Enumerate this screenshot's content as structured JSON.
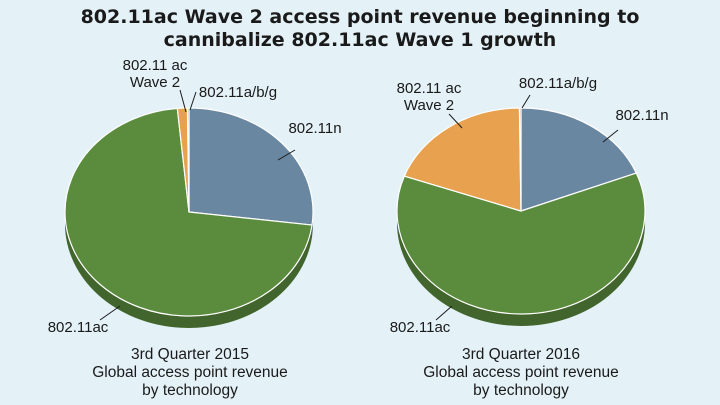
{
  "chart_data": [
    {
      "type": "pie",
      "title": "802.11ac Wave 2 access point revenue beginning to cannibalize 802.11ac Wave 1 growth",
      "caption": [
        "3rd Quarter 2015",
        "Global access point revenue",
        "by technology"
      ],
      "slices": [
        {
          "label": "802.11n",
          "value": 27,
          "color": "#6a87a1"
        },
        {
          "label": "802.11ac",
          "value": 71.5,
          "color": "#5b8c3e"
        },
        {
          "label": "802.11 ac Wave 2",
          "value": 1.3,
          "color": "#e8a14f"
        },
        {
          "label": "802.11a/b/g",
          "value": 0.2,
          "color": "#a4878f"
        }
      ]
    },
    {
      "type": "pie",
      "title": "802.11ac Wave 2 access point revenue beginning to cannibalize 802.11ac Wave 1 growth",
      "caption": [
        "3rd Quarter 2016",
        "Global access point revenue",
        "by technology"
      ],
      "slices": [
        {
          "label": "802.11n",
          "value": 19,
          "color": "#6a87a1"
        },
        {
          "label": "802.11ac",
          "value": 61.5,
          "color": "#5b8c3e"
        },
        {
          "label": "802.11 ac Wave 2",
          "value": 19.3,
          "color": "#e8a14f"
        },
        {
          "label": "802.11a/b/g",
          "value": 0.2,
          "color": "#a4878f"
        }
      ]
    }
  ],
  "title_lines": [
    "802.11ac Wave 2 access point revenue beginning to",
    "cannibalize 802.11ac Wave 1 growth"
  ]
}
